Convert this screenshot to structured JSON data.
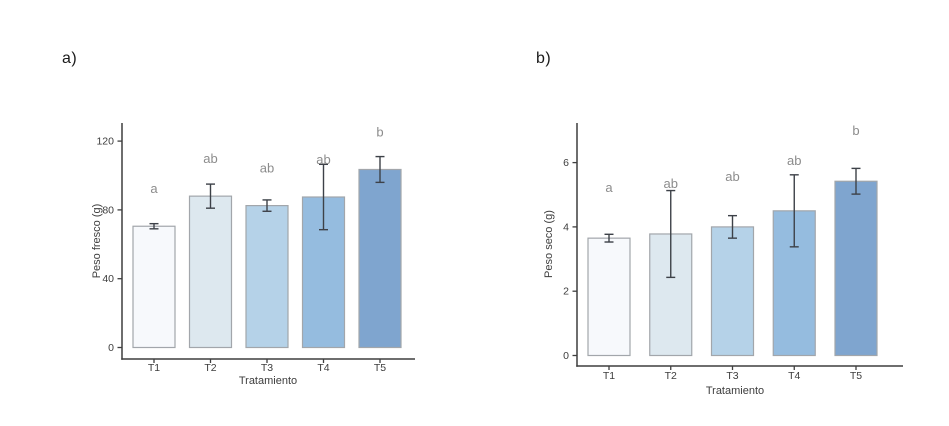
{
  "panel_a_label": "a)",
  "panel_b_label": "b)",
  "chart_data": [
    {
      "type": "bar",
      "panel": "a",
      "title": "",
      "xlabel": "Tratamiento",
      "ylabel": "Peso fresco (g)",
      "categories": [
        "T1",
        "T2",
        "T3",
        "T4",
        "T5"
      ],
      "values": [
        70.5,
        88,
        82.5,
        87.5,
        103.5
      ],
      "errors": [
        1.5,
        7,
        3.3,
        19,
        7.5
      ],
      "sig_letters": [
        "a",
        "ab",
        "ab",
        "ab",
        "b"
      ],
      "yticks": [
        0,
        40,
        80,
        120
      ],
      "ylim": [
        0,
        130
      ],
      "grid": false,
      "legend": "none"
    },
    {
      "type": "bar",
      "panel": "b",
      "title": "",
      "xlabel": "Tratamiento",
      "ylabel": "Peso seco (g)",
      "categories": [
        "T1",
        "T2",
        "T3",
        "T4",
        "T5"
      ],
      "values": [
        3.65,
        3.78,
        4.0,
        4.5,
        5.42
      ],
      "errors": [
        0.12,
        1.35,
        0.35,
        1.12,
        0.4
      ],
      "sig_letters": [
        "a",
        "ab",
        "ab",
        "ab",
        "b"
      ],
      "yticks": [
        0,
        2,
        4,
        6
      ],
      "ylim": [
        0,
        7.25
      ],
      "grid": false,
      "legend": "none"
    }
  ],
  "style": {
    "bar_fill_colors": [
      "#f7f9fc",
      "#dde8ef",
      "#b5d2e8",
      "#95bcdf",
      "#7fa5cf"
    ],
    "bar_border_color": "#a2a6ab",
    "error_bar_color": "#3d4148",
    "sig_letter_color": "#8c8c8c",
    "axis_color": "#3f3f3f",
    "text_color": "#3d3d3d",
    "background": "#ffffff"
  }
}
